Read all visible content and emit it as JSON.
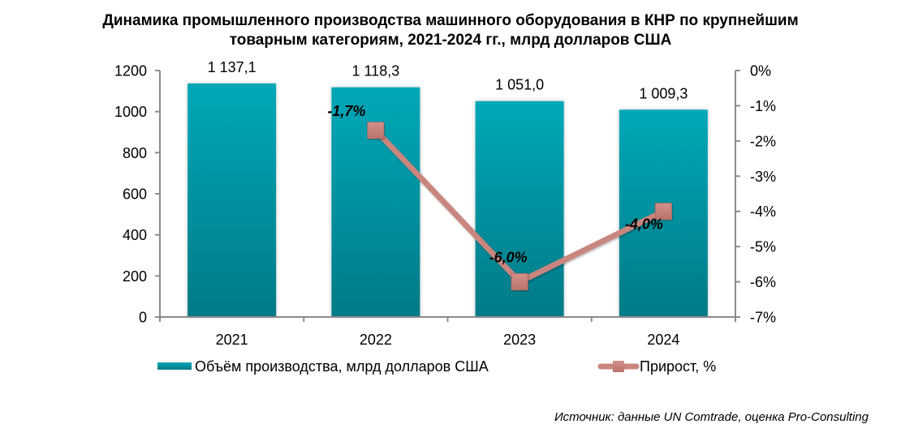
{
  "chart_data": {
    "type": "bar",
    "title_line1": "Динамика промышленного производства машинного оборудования в КНР по крупнейшим",
    "title_line2": "товарным категориям, 2021-2024 гг., млрд долларов США",
    "categories": [
      "2021",
      "2022",
      "2023",
      "2024"
    ],
    "series": [
      {
        "name": "Объём производства, млрд долларов США",
        "type": "bar",
        "axis": "left",
        "values": [
          1137.1,
          1118.3,
          1051.0,
          1009.3
        ],
        "labels": [
          "1 137,1",
          "1 118,3",
          "1 051,0",
          "1 009,3"
        ],
        "color_top": "#00A8B8",
        "color_bottom": "#007A86"
      },
      {
        "name": "Прирост, %",
        "type": "line",
        "axis": "right",
        "values": [
          null,
          -1.7,
          -6.0,
          -4.0
        ],
        "labels": [
          "",
          "-1,7%",
          "-6,0%",
          "-4,0%"
        ],
        "color": "#C8867E",
        "marker": "square"
      }
    ],
    "y_left": {
      "min": 0,
      "max": 1200,
      "step": 200,
      "ticks": [
        "0",
        "200",
        "400",
        "600",
        "800",
        "1000",
        "1200"
      ]
    },
    "y_right": {
      "min": -7,
      "max": 0,
      "step": 1,
      "ticks": [
        "-7%",
        "-6%",
        "-5%",
        "-4%",
        "-3%",
        "-2%",
        "-1%",
        "0%"
      ]
    },
    "grid": false,
    "legend_position": "bottom",
    "xlabel": "",
    "ylabel": ""
  },
  "source": "Источник: данные UN Comtrade, оценка Pro-Consulting"
}
